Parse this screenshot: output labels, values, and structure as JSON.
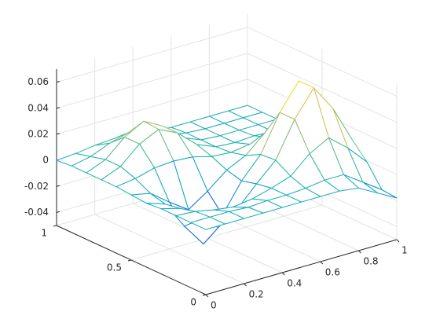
{
  "chart_data": {
    "type": "mesh",
    "x": [
      0,
      0.1,
      0.2,
      0.3,
      0.4,
      0.5,
      0.6,
      0.7,
      0.8,
      0.9,
      1
    ],
    "y": [
      0,
      0.1,
      0.2,
      0.3,
      0.4,
      0.5,
      0.6,
      0.7,
      0.8,
      0.9,
      1
    ],
    "z": [
      [
        0,
        0,
        0,
        0,
        0,
        0,
        0,
        0,
        -0.002,
        -0.01,
        -0.018
      ],
      [
        0,
        0,
        0,
        -0.001,
        0,
        0,
        0.001,
        0.003,
        0.003,
        -0.007,
        -0.017
      ],
      [
        0,
        -0.001,
        -0.004,
        -0.006,
        -0.004,
        0,
        0.005,
        0.018,
        0.026,
        0.014,
        -0.001
      ],
      [
        0,
        -0.004,
        -0.017,
        -0.027,
        -0.017,
        -0.002,
        0.012,
        0.039,
        0.059,
        0.039,
        0.011
      ],
      [
        -0.001,
        -0.006,
        -0.027,
        -0.045,
        -0.027,
        -0.005,
        0.011,
        0.039,
        0.059,
        0.039,
        0.012
      ],
      [
        0,
        -0.003,
        -0.014,
        -0.024,
        -0.014,
        -0.002,
        0.005,
        0.018,
        0.027,
        0.018,
        0.005
      ],
      [
        0.001,
        0.003,
        0.007,
        0.008,
        0.007,
        0.003,
        0.002,
        0.004,
        0.005,
        0.004,
        0.001
      ],
      [
        0.001,
        0.007,
        0.02,
        0.027,
        0.02,
        0.007,
        0.001,
        0,
        0.001,
        0,
        0
      ],
      [
        0.001,
        0.007,
        0.02,
        0.028,
        0.02,
        0.007,
        0.001,
        0,
        0,
        0,
        0
      ],
      [
        0.001,
        0.004,
        0.01,
        0.014,
        0.01,
        0.004,
        0.001,
        0,
        0,
        0,
        0
      ],
      [
        0,
        0.001,
        0.003,
        0.004,
        0.003,
        0.001,
        0,
        0,
        0,
        0,
        0
      ]
    ],
    "xlim": [
      0,
      1
    ],
    "ylim": [
      0,
      1
    ],
    "zlim": [
      -0.05,
      0.07
    ],
    "xticks": [
      0,
      0.2,
      0.4,
      0.6,
      0.8,
      1
    ],
    "yticks": [
      0,
      0.5,
      1
    ],
    "zticks": [
      -0.04,
      -0.02,
      0,
      0.02,
      0.04,
      0.06
    ],
    "grid": true,
    "colormap": [
      "#352a87",
      "#0f5cdd",
      "#1481d6",
      "#06a4ca",
      "#2eb7a4",
      "#87bf77",
      "#d1bb59",
      "#fec832",
      "#f9fb0e"
    ]
  }
}
